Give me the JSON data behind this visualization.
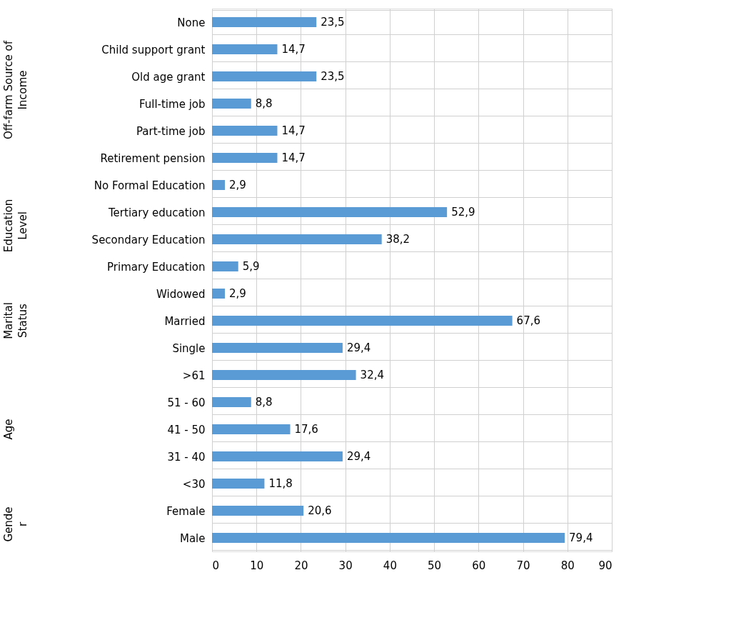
{
  "chart_data": {
    "type": "bar",
    "orientation": "horizontal",
    "categories": [
      "None",
      "Child support grant",
      "Old age grant ",
      "Full-time job",
      "Part-time job",
      "Retirement pension",
      "No Formal Education",
      "Tertiary education",
      "Secondary Education",
      "Primary Education",
      "Widowed",
      "Married",
      "Single",
      ">61",
      "51 - 60",
      "41 - 50",
      "31 - 40",
      "<30",
      "Female",
      "Male"
    ],
    "values": [
      23.5,
      14.7,
      23.5,
      8.8,
      14.7,
      14.7,
      2.9,
      52.9,
      38.2,
      5.9,
      2.9,
      67.6,
      29.4,
      32.4,
      8.8,
      17.6,
      29.4,
      11.8,
      20.6,
      79.4
    ],
    "value_labels": [
      "23,5",
      "14,7",
      "23,5",
      "8,8",
      "14,7",
      "14,7",
      "2,9",
      "52,9",
      "38,2",
      "5,9",
      "2,9",
      "67,6",
      "29,4",
      "32,4",
      "8,8",
      "17,6",
      "29,4",
      "11,8",
      "20,6",
      "79,4"
    ],
    "color": "#5b9bd5",
    "xlim": [
      0,
      90
    ],
    "xticks": [
      0,
      10,
      20,
      30,
      40,
      50,
      60,
      70,
      80,
      90
    ],
    "grid": true,
    "annotations": [
      "Off-farm Source of\nIncome",
      "Education\nLevel",
      "Marital\nStatus",
      "Age",
      "Gende\nr"
    ]
  }
}
